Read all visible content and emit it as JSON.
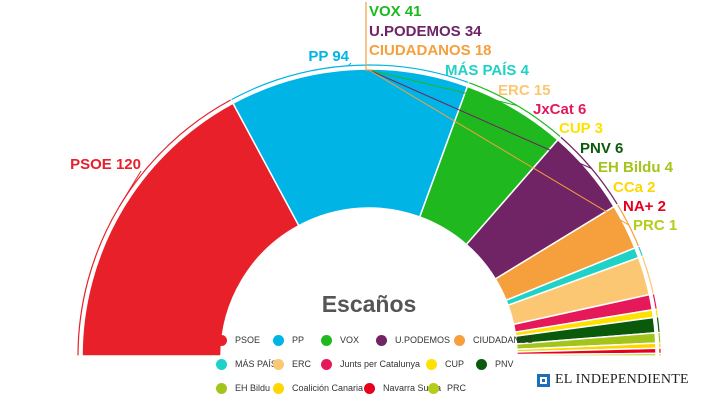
{
  "chart_data": {
    "type": "pie",
    "subtype": "parliament-semicircle",
    "center_label": "Escaños",
    "series": [
      {
        "name": "PSOE",
        "label": "PSOE 120",
        "value": 120,
        "color": "#e8202a"
      },
      {
        "name": "PP",
        "label": "PP 94",
        "value": 94,
        "color": "#00b4e6"
      },
      {
        "name": "VOX",
        "label": "VOX 41",
        "value": 41,
        "color": "#1fb91f"
      },
      {
        "name": "U.PODEMOS",
        "label": "U.PODEMOS 34",
        "value": 34,
        "color": "#702365"
      },
      {
        "name": "CIUDADANOS",
        "label": "CIUDADANOS 18",
        "value": 18,
        "color": "#f5a03c"
      },
      {
        "name": "MÁS PAÍS",
        "label": "MÁS PAÍS 4",
        "value": 4,
        "color": "#1ed2c8"
      },
      {
        "name": "ERC",
        "label": "ERC 15",
        "value": 15,
        "color": "#fbc772"
      },
      {
        "name": "Junts per Catalunya",
        "label": "JxCat 6",
        "value": 6,
        "color": "#e5195a"
      },
      {
        "name": "CUP",
        "label": "CUP 3",
        "value": 3,
        "color": "#ffe100"
      },
      {
        "name": "PNV",
        "label": "PNV 6",
        "value": 6,
        "color": "#0b5a0b"
      },
      {
        "name": "EH Bildu",
        "label": "EH Bildu 4",
        "value": 4,
        "color": "#a3c41a"
      },
      {
        "name": "Coalición Canaria",
        "label": "CCa 2",
        "value": 2,
        "color": "#ffd700"
      },
      {
        "name": "Navarra Suma",
        "label": "NA+ 2",
        "value": 2,
        "color": "#e6001e"
      },
      {
        "name": "PRC",
        "label": "PRC 1",
        "value": 1,
        "color": "#b5cc1a"
      }
    ],
    "legend": [
      [
        "PSOE",
        "PP",
        "VOX",
        "U.PODEMOS",
        "CIUDADANOS"
      ],
      [
        "MÁS PAÍS",
        "ERC",
        "Junts per Catalunya",
        "CUP",
        "PNV"
      ],
      [
        "EH Bildu",
        "Coalición Canaria",
        "Navarra Suma",
        "PRC"
      ]
    ],
    "legend_placement": "bottom-center"
  },
  "brand": {
    "name": "EL INDEPENDIENTE",
    "color": "#1e6fb8"
  }
}
